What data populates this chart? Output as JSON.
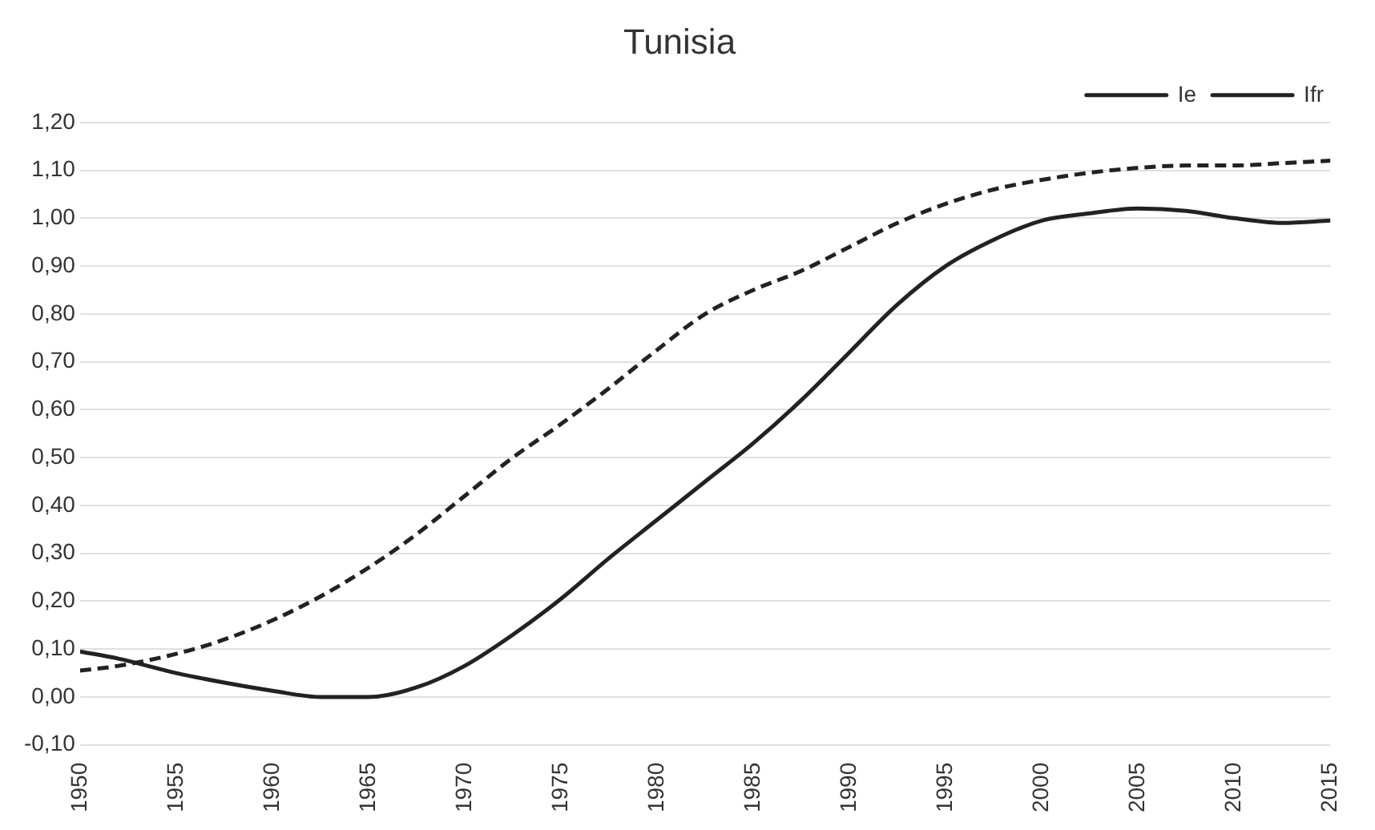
{
  "chart_data": {
    "type": "line",
    "title": "Tunisia",
    "x": [
      1950,
      1952,
      1955,
      1957.5,
      1960,
      1962.5,
      1965,
      1967.5,
      1970,
      1972.5,
      1975,
      1977.5,
      1980,
      1982.5,
      1985,
      1987.5,
      1990,
      1992.5,
      1995,
      1997.5,
      2000,
      2002.5,
      2005,
      2007.5,
      2010,
      2012.5,
      2015
    ],
    "series": [
      {
        "name": "Ie",
        "color": "#222222",
        "line_style": "dashed",
        "values": [
          0.055,
          0.065,
          0.09,
          0.12,
          0.16,
          0.21,
          0.27,
          0.34,
          0.42,
          0.5,
          0.57,
          0.645,
          0.725,
          0.8,
          0.85,
          0.89,
          0.94,
          0.99,
          1.03,
          1.06,
          1.08,
          1.095,
          1.105,
          1.11,
          1.11,
          1.115,
          1.12
        ]
      },
      {
        "name": "Ifr",
        "color": "#222222",
        "line_style": "solid",
        "values": [
          0.095,
          0.08,
          0.05,
          0.03,
          0.013,
          0.0,
          0.0,
          0.02,
          0.065,
          0.13,
          0.205,
          0.29,
          0.37,
          0.45,
          0.53,
          0.62,
          0.72,
          0.82,
          0.9,
          0.955,
          0.995,
          1.01,
          1.02,
          1.015,
          1.0,
          0.99,
          0.995
        ]
      }
    ],
    "xlim": [
      1950,
      2015
    ],
    "xticks": [
      1950,
      1955,
      1960,
      1965,
      1970,
      1975,
      1980,
      1985,
      1990,
      1995,
      2000,
      2005,
      2010,
      2015
    ],
    "ylim": [
      -0.1,
      1.2
    ],
    "yticks": [
      {
        "value": -0.1,
        "label": "-0,10"
      },
      {
        "value": 0,
        "label": "0,00"
      },
      {
        "value": 0.1,
        "label": "0,10"
      },
      {
        "value": 0.2,
        "label": "0,20"
      },
      {
        "value": 0.3,
        "label": "0,30"
      },
      {
        "value": 0.4,
        "label": "0,40"
      },
      {
        "value": 0.5,
        "label": "0,50"
      },
      {
        "value": 0.6,
        "label": "0,60"
      },
      {
        "value": 0.7,
        "label": "0,70"
      },
      {
        "value": 0.8,
        "label": "0,80"
      },
      {
        "value": 0.9,
        "label": "0,90"
      },
      {
        "value": 1,
        "label": "1,00"
      },
      {
        "value": 1.1,
        "label": "1,10"
      },
      {
        "value": 1.2,
        "label": "1,20"
      }
    ],
    "grid": "y",
    "legend": "top right",
    "marker": "none"
  }
}
